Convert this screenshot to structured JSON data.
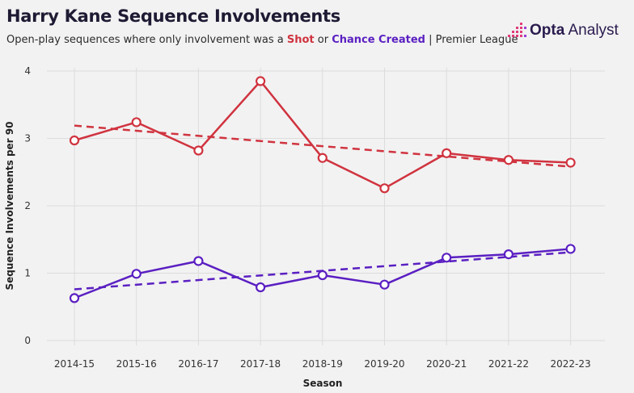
{
  "header": {
    "title": "Harry Kane Sequence Involvements",
    "subtitle_prefix": "Open-play sequences where only involvement was a ",
    "subtitle_shot": "Shot",
    "subtitle_or": " or ",
    "subtitle_cc": "Chance Created",
    "subtitle_suffix": " | Premier League"
  },
  "brand": {
    "logo_icon": "opta-dots-icon",
    "name_bold": "Opta",
    "name_rest": " Analyst"
  },
  "colors": {
    "shot": "#d0333f",
    "chance_created": "#5a1fc2",
    "grid": "#dcdcdc",
    "background": "#f2f2f2"
  },
  "chart_data": {
    "type": "line",
    "xlabel": "Season",
    "ylabel": "Sequence Involvements per 90",
    "categories": [
      "2014-15",
      "2015-16",
      "2016-17",
      "2017-18",
      "2018-19",
      "2019-20",
      "2020-21",
      "2021-22",
      "2022-23"
    ],
    "ylim": [
      0,
      4
    ],
    "yticks": [
      0,
      1,
      2,
      3,
      4
    ],
    "grid": true,
    "series": [
      {
        "name": "Shot",
        "color": "#d0333f",
        "values": [
          2.97,
          3.24,
          2.82,
          3.85,
          2.71,
          2.26,
          2.78,
          2.68,
          2.64
        ],
        "trend": [
          3.19,
          2.58
        ]
      },
      {
        "name": "Chance Created",
        "color": "#5a1fc2",
        "values": [
          0.63,
          0.99,
          1.18,
          0.79,
          0.97,
          0.83,
          1.23,
          1.28,
          1.36
        ],
        "trend": [
          0.76,
          1.31
        ]
      }
    ]
  }
}
